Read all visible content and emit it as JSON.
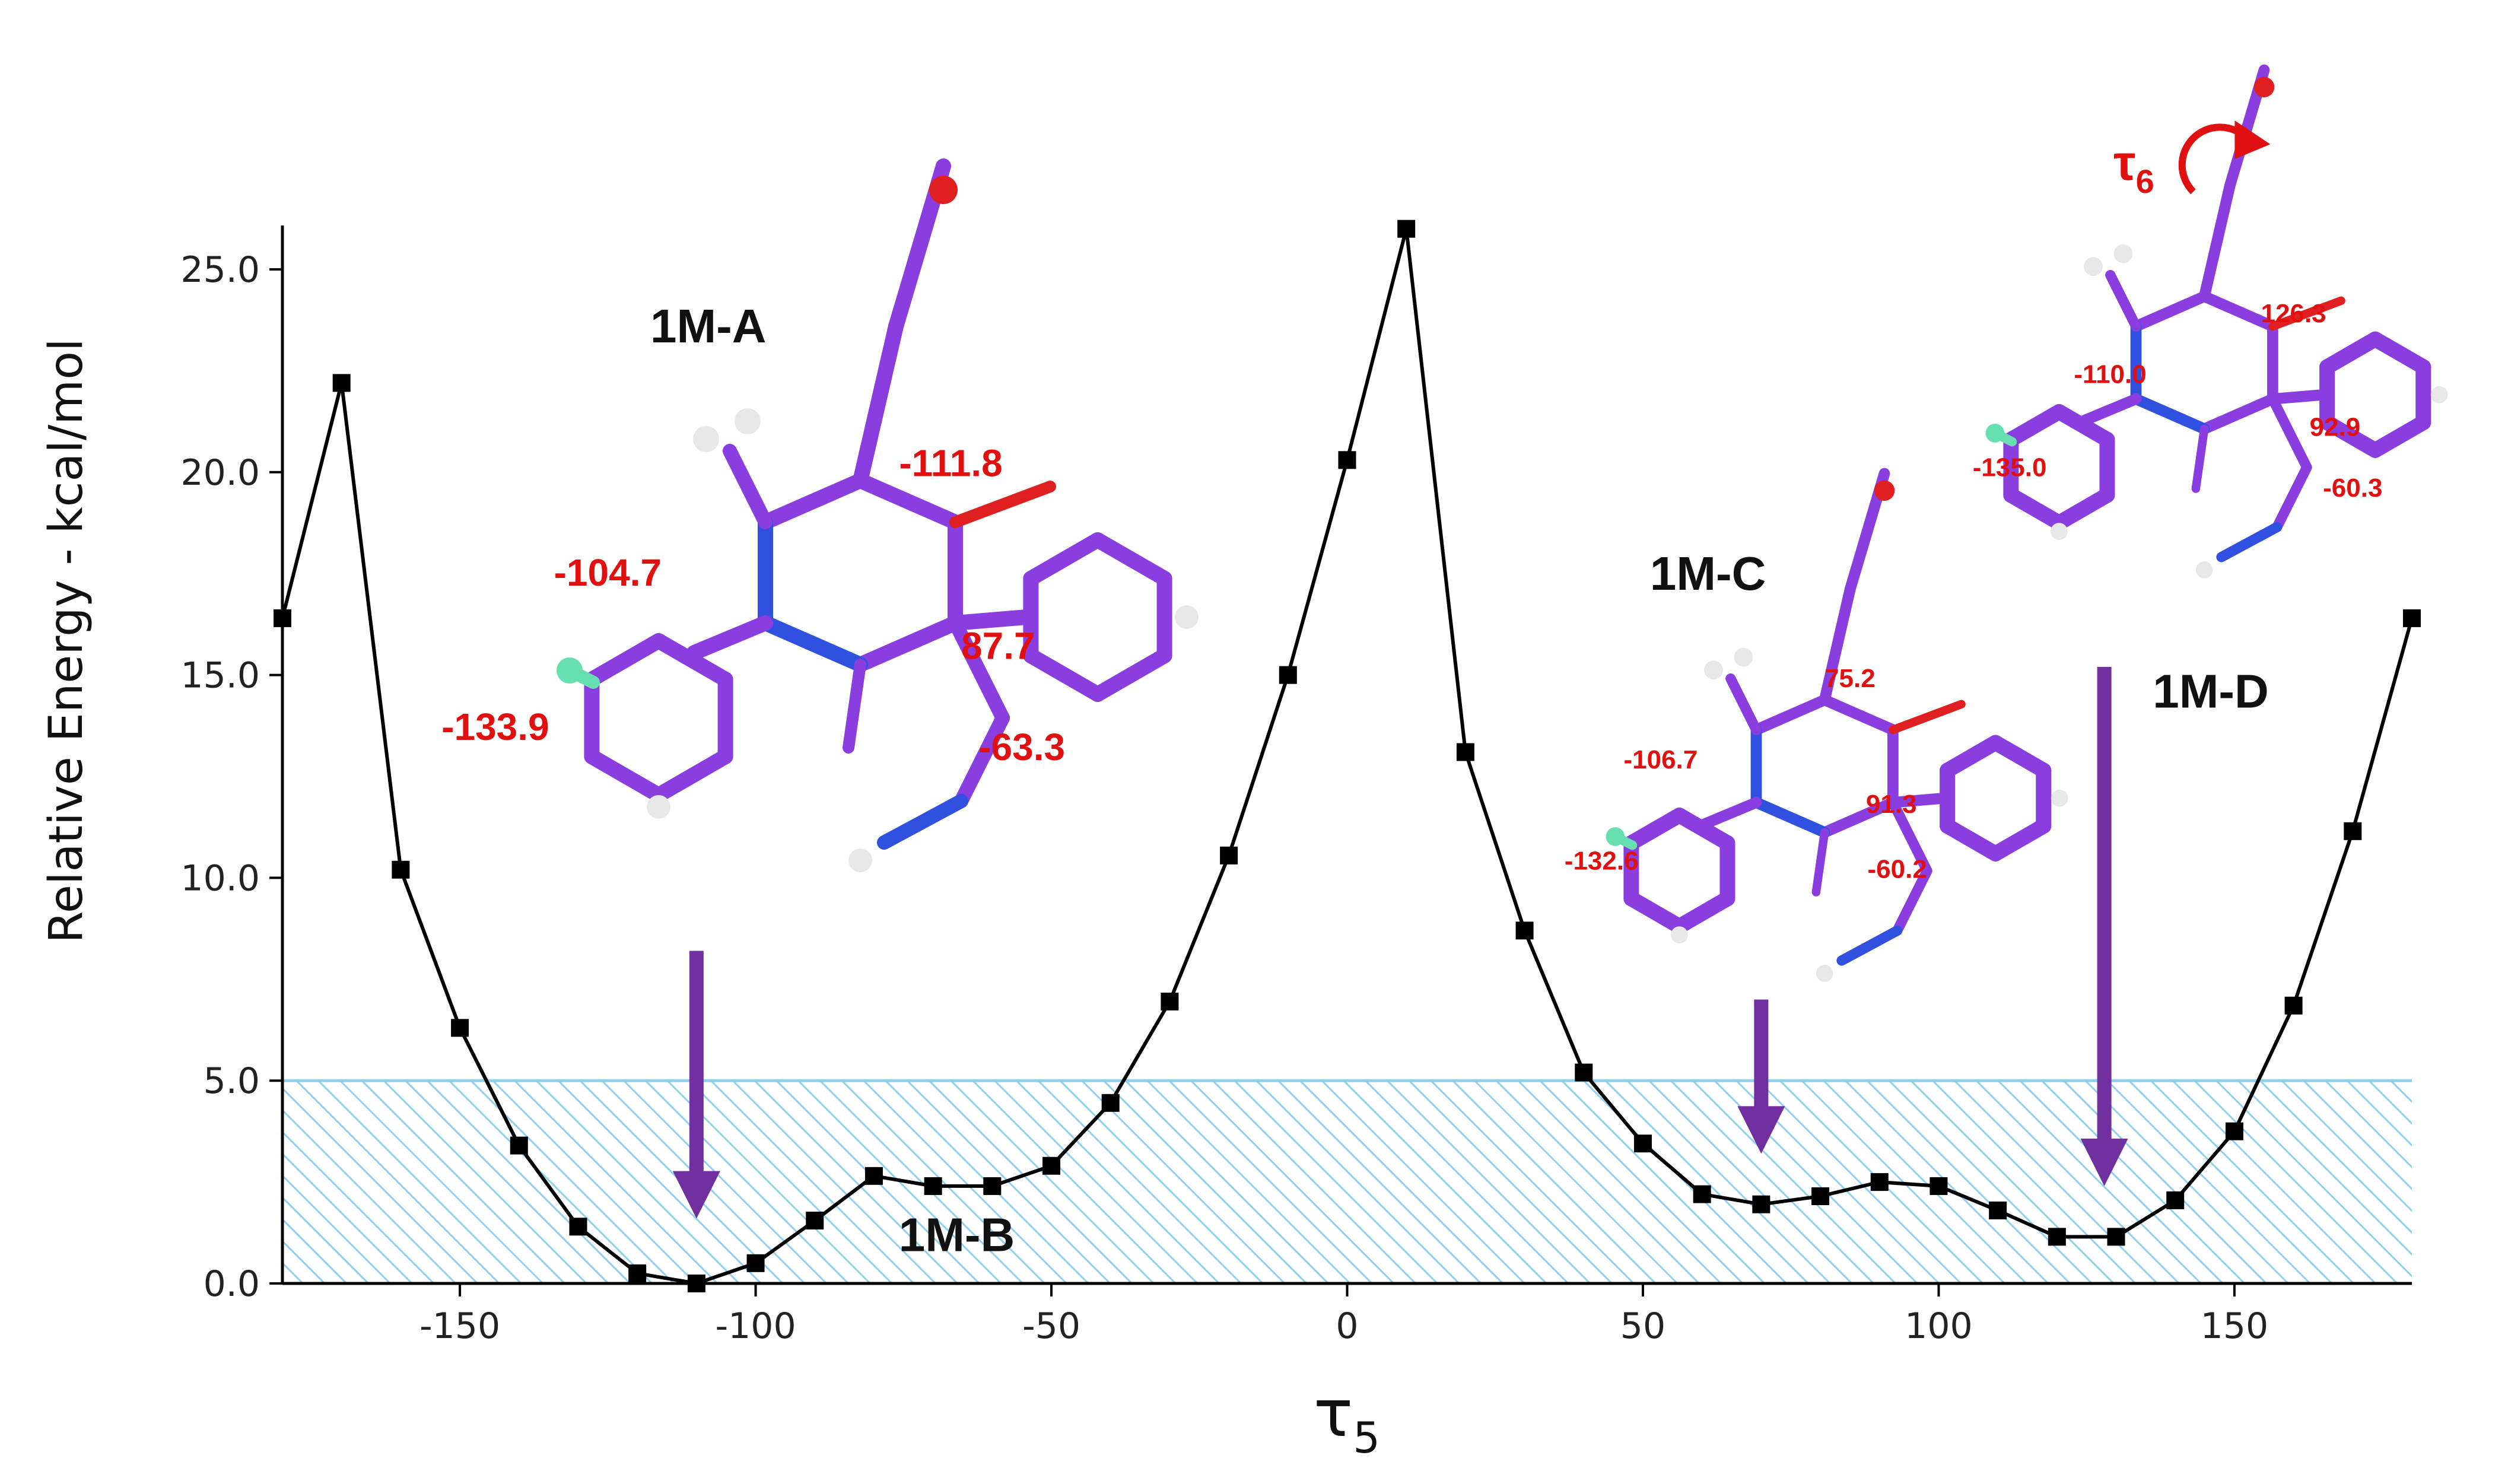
{
  "chart_data": {
    "type": "line",
    "xlabel": "τ5",
    "ylabel": "Relative Energy - kcal/mol",
    "xlim": [
      -180,
      180
    ],
    "ylim": [
      0,
      26
    ],
    "xticks": [
      -150,
      -100,
      -50,
      0,
      50,
      100,
      150
    ],
    "yticks": [
      0.0,
      5.0,
      10.0,
      15.0,
      20.0,
      25.0
    ],
    "series": [
      {
        "x": [
          -180,
          -170,
          -160,
          -150,
          -140,
          -130,
          -120,
          -110,
          -100,
          -90,
          -80,
          -70,
          -60,
          -50,
          -40,
          -30,
          -20,
          -10,
          0,
          10,
          20,
          30,
          40,
          50,
          60,
          70,
          80,
          90,
          100,
          110,
          120,
          130,
          140,
          150,
          160,
          170,
          180
        ],
        "y": [
          16.4,
          22.2,
          10.2,
          6.3,
          3.4,
          1.4,
          0.25,
          0.0,
          0.5,
          1.55,
          2.65,
          2.4,
          2.4,
          2.9,
          4.45,
          6.95,
          10.55,
          15.0,
          20.3,
          26.0,
          13.1,
          8.7,
          5.2,
          3.45,
          2.2,
          1.95,
          2.15,
          2.5,
          2.4,
          1.8,
          1.15,
          1.15,
          2.05,
          3.75,
          6.85,
          11.15,
          16.4
        ],
        "color": "#000000"
      }
    ],
    "shaded_band": {
      "y_min": 0,
      "y_max": 5.0,
      "color": "#8fd0f0"
    },
    "annotations": [
      {
        "label": "1M-A",
        "x": -108,
        "y": 23.2
      },
      {
        "label": "1M-B",
        "x": -66,
        "y": 0.8
      },
      {
        "label": "1M-C",
        "x": 61,
        "y": 17.1
      },
      {
        "label": "1M-D",
        "x": 146,
        "y": 14.2
      }
    ],
    "arrows": [
      {
        "x": -110,
        "y_start": 8.2,
        "y_end": 1.6
      },
      {
        "x": 70,
        "y_start": 7.0,
        "y_end": 3.2
      },
      {
        "x": 128,
        "y_start": 15.2,
        "y_end": 2.4
      }
    ],
    "dihedral_labels": [
      {
        "text": "-111.8",
        "x": -67,
        "y": 19.9,
        "size": "large"
      },
      {
        "text": "-104.7",
        "x": -125,
        "y": 17.2,
        "size": "large"
      },
      {
        "text": "87.7",
        "x": -59,
        "y": 15.4,
        "size": "large"
      },
      {
        "text": "-133.9",
        "x": -144,
        "y": 13.4,
        "size": "large"
      },
      {
        "text": "-63.3",
        "x": -55,
        "y": 12.9,
        "size": "large"
      },
      {
        "text": "75.2",
        "x": 85,
        "y": 14.7,
        "size": "small"
      },
      {
        "text": "-106.7",
        "x": 53,
        "y": 12.7,
        "size": "small"
      },
      {
        "text": "91.3",
        "x": 92,
        "y": 11.6,
        "size": "small"
      },
      {
        "text": "-132.6",
        "x": 43,
        "y": 10.2,
        "size": "small"
      },
      {
        "text": "-60.2",
        "x": 93,
        "y": 10.0,
        "size": "small"
      },
      {
        "text": "126.3",
        "x": 160,
        "y": 23.7,
        "size": "small"
      },
      {
        "text": "-110.0",
        "x": 129,
        "y": 22.2,
        "size": "small"
      },
      {
        "text": "92.9",
        "x": 167,
        "y": 20.9,
        "size": "small"
      },
      {
        "text": "-135.0",
        "x": 112,
        "y": 19.9,
        "size": "small"
      },
      {
        "text": "-60.3",
        "x": 170,
        "y": 19.4,
        "size": "small"
      }
    ],
    "torsion_label": {
      "text": "τ6",
      "x": 133,
      "y": 27.5
    }
  }
}
